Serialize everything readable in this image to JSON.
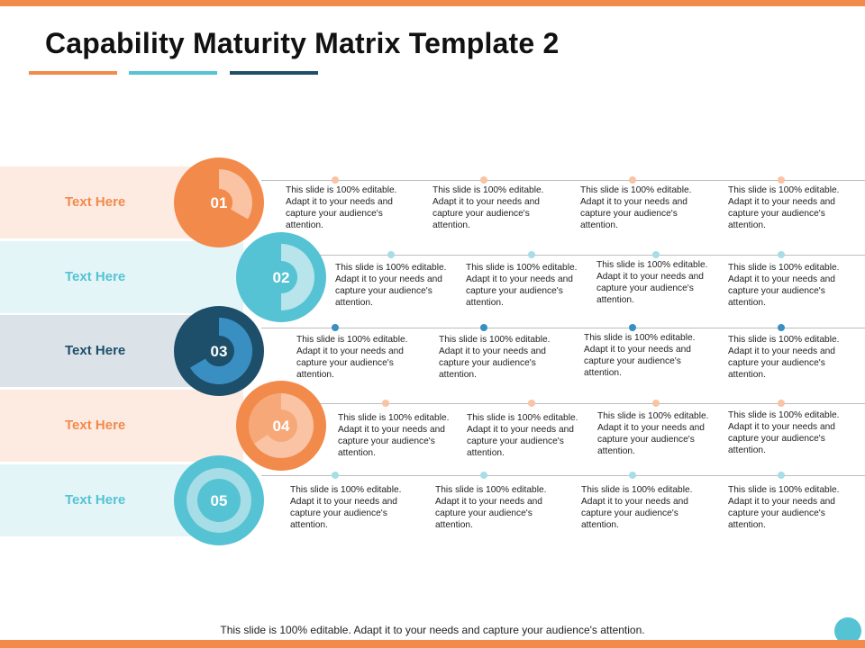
{
  "title": "Capability Maturity Matrix Template 2",
  "colors": {
    "orange": "#f28a4b",
    "teal": "#55c3d3",
    "navy": "#1d4f6b",
    "blue": "#3a8fc2"
  },
  "rows": [
    {
      "number": "01",
      "label": "Text Here",
      "theme": "orange",
      "cells": [
        "This slide is 100% editable. Adapt it to your needs and capture your audience's attention.",
        "This slide is 100% editable. Adapt it to your needs and capture your audience's attention.",
        "This slide is 100% editable. Adapt it to your needs and capture your audience's attention.",
        "This slide is 100% editable. Adapt it to your needs and capture your audience's attention."
      ]
    },
    {
      "number": "02",
      "label": "Text Here",
      "theme": "teal",
      "cells": [
        "This slide is 100% editable. Adapt it to your needs and capture your audience's attention.",
        "This slide is 100% editable. Adapt it to your needs and capture your audience's attention.",
        "This slide is 100% editable. Adapt it to your needs and capture your audience's attention.",
        "This slide is 100% editable. Adapt it to your needs and capture your audience's attention."
      ]
    },
    {
      "number": "03",
      "label": "Text Here",
      "theme": "navy",
      "cells": [
        "This slide is 100% editable. Adapt it to your needs and capture your audience's attention.",
        "This slide is 100% editable. Adapt it to your needs and capture your audience's attention.",
        "This slide is 100% editable. Adapt it to your needs and capture your audience's attention.",
        "This slide is 100% editable. Adapt it to your needs and capture your audience's attention."
      ]
    },
    {
      "number": "04",
      "label": "Text Here",
      "theme": "orange",
      "cells": [
        "This slide is 100% editable. Adapt it to your needs and capture your audience's attention.",
        "This slide is 100% editable. Adapt it to your needs and capture your audience's attention.",
        "This slide is 100% editable. Adapt it to your needs and capture your audience's attention.",
        "This slide is 100% editable. Adapt it to your needs and capture your audience's attention."
      ]
    },
    {
      "number": "05",
      "label": "Text Here",
      "theme": "teal",
      "cells": [
        "This slide is 100% editable. Adapt it to your needs and capture your audience's attention.",
        "This slide is 100% editable. Adapt it to your needs and capture your audience's attention.",
        "This slide is 100% editable. Adapt it to your needs and capture your audience's attention.",
        "This slide is 100% editable. Adapt it to your needs and capture your audience's attention."
      ]
    }
  ],
  "footer": "This slide is 100% editable. Adapt it to your needs and capture your audience's attention."
}
